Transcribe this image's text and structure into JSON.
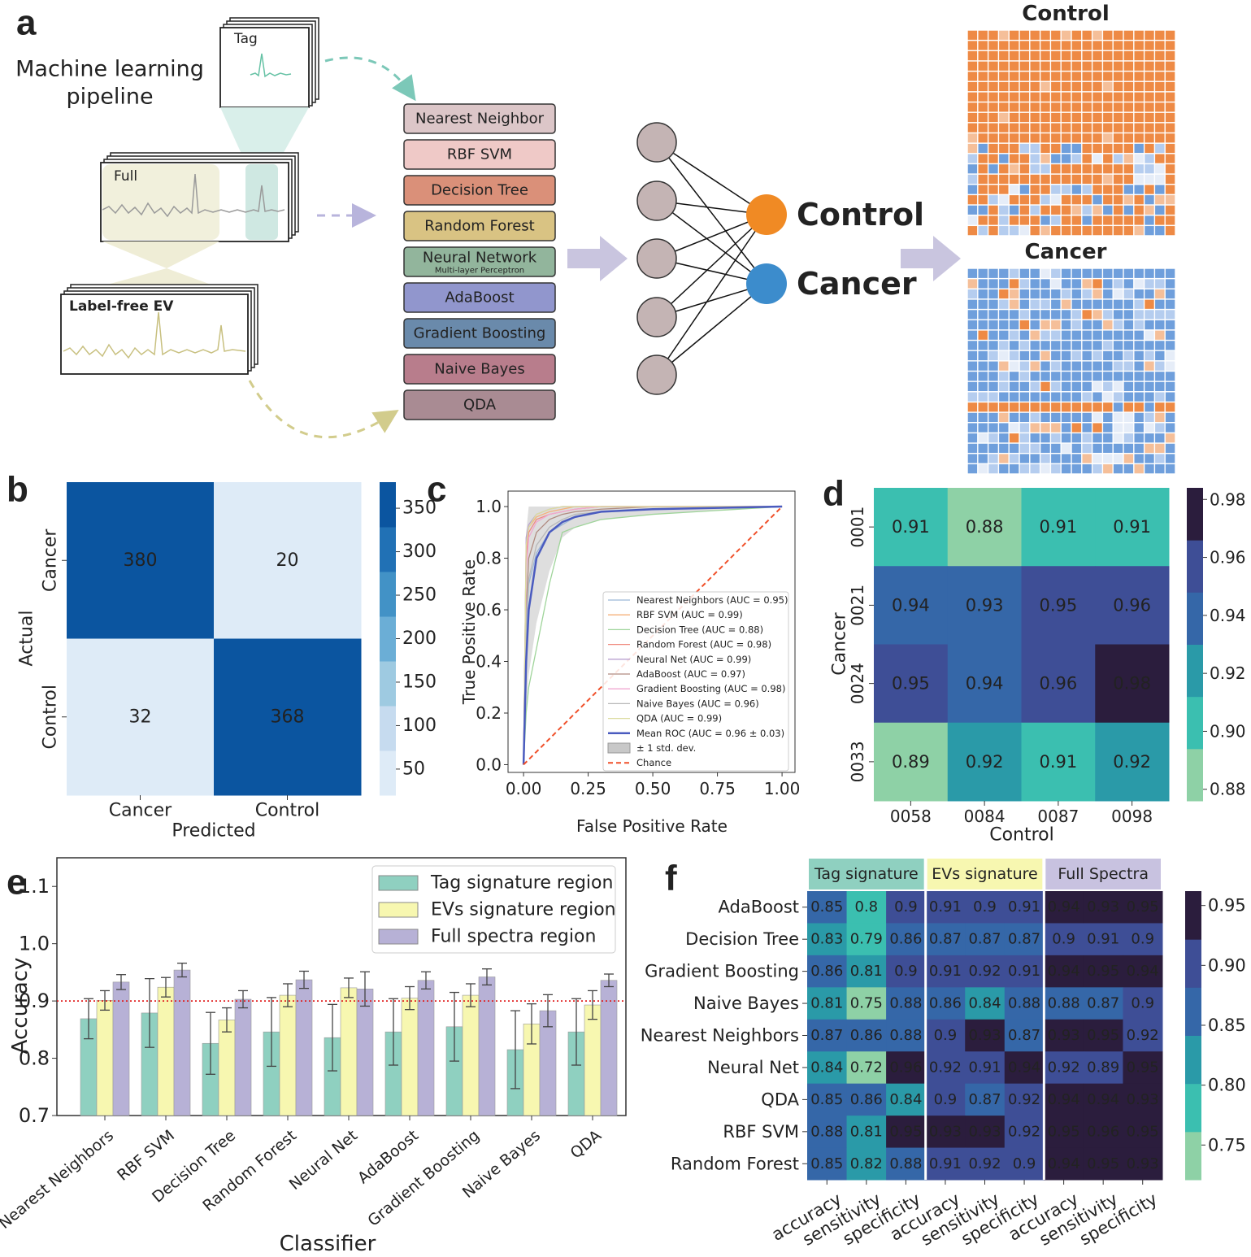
{
  "pipeline": {
    "panel": "a",
    "title_lines": [
      "Machine learning",
      "pipeline"
    ],
    "inputs": {
      "tag": "Tag",
      "full": "Full",
      "ev": "Label-free EV"
    },
    "classifiers": [
      "Nearest Neighbor",
      "RBF SVM",
      "Decision Tree",
      "Random Forest",
      "Neural Network",
      "AdaBoost",
      "Gradient Boosting",
      "Naive Bayes",
      "QDA"
    ],
    "classifier_colors": [
      "#dcc6c8",
      "#efc9c7",
      "#da9079",
      "#d9c383",
      "#92b59c",
      "#9196cd",
      "#6a8aab",
      "#b87d8c",
      "#a98b93"
    ],
    "classifier_note": "Multi-layer Perceptron",
    "outputs": [
      {
        "name": "Control",
        "color": "#f08a24"
      },
      {
        "name": "Cancer",
        "color": "#3c8ccc"
      }
    ],
    "result_titles": [
      "Control",
      "Cancer"
    ]
  },
  "chart_data": [
    {
      "type": "heatmap",
      "panel": "b",
      "categories": [
        "Cancer",
        "Control"
      ],
      "rows": [
        "Cancer",
        "Control"
      ],
      "values": [
        [
          380,
          20
        ],
        [
          32,
          368
        ]
      ],
      "xlabel": "Predicted",
      "ylabel": "Actual",
      "annot": true,
      "colorbar": {
        "lim": [
          20,
          380
        ],
        "ticks": [
          50,
          100,
          150,
          200,
          250,
          300,
          350
        ],
        "colors": [
          "#deebf7",
          "#c6dbef",
          "#9ecae1",
          "#6baed6",
          "#4292c6",
          "#2171b5",
          "#0b55a0"
        ]
      }
    },
    {
      "type": "line",
      "panel": "c",
      "xlabel": "False Positive Rate",
      "ylabel": "True Positive Rate",
      "xlim": [
        -0.06,
        1.05
      ],
      "ylim": [
        -0.03,
        1.06
      ],
      "xticks": [
        {
          "value": 0,
          "label": "0.00"
        },
        0.25,
        {
          "value": 0.5,
          "label": "0.50"
        },
        0.75,
        {
          "value": 1,
          "label": "1.00"
        }
      ],
      "yticks": [
        {
          "value": 0,
          "label": "0.0"
        },
        0.2,
        0.4,
        0.6,
        0.8,
        {
          "value": 1,
          "label": "1.0"
        }
      ],
      "x": [
        0,
        0.01,
        0.02,
        0.05,
        0.1,
        0.15,
        0.2,
        0.3,
        0.5,
        1
      ],
      "series": [
        {
          "name": "Nearest Neighbors (AUC = 0.95)",
          "color": "#9ab6d8",
          "values": [
            0,
            0.5,
            0.7,
            0.82,
            0.9,
            0.93,
            0.96,
            0.98,
            0.99,
            1
          ]
        },
        {
          "name": "RBF SVM (AUC = 0.99)",
          "color": "#f5b07a",
          "values": [
            0,
            0.85,
            0.92,
            0.96,
            0.98,
            0.99,
            1,
            1,
            1,
            1
          ]
        },
        {
          "name": "Decision Tree (AUC = 0.88)",
          "color": "#9fd49a",
          "values": [
            0,
            0.2,
            0.3,
            0.45,
            0.7,
            0.9,
            0.92,
            0.95,
            0.97,
            1
          ]
        },
        {
          "name": "Random Forest (AUC = 0.98)",
          "color": "#f08b80",
          "values": [
            0,
            0.8,
            0.9,
            0.95,
            0.97,
            0.98,
            0.99,
            1,
            1,
            1
          ]
        },
        {
          "name": "Neural Net (AUC = 0.99)",
          "color": "#b9a0d0",
          "values": [
            0,
            0.88,
            0.93,
            0.97,
            0.99,
            1,
            1,
            1,
            1,
            1
          ]
        },
        {
          "name": "AdaBoost (AUC = 0.97)",
          "color": "#b08b80",
          "values": [
            0,
            0.6,
            0.8,
            0.9,
            0.95,
            0.97,
            0.98,
            0.99,
            1,
            1
          ]
        },
        {
          "name": "Gradient Boosting (AUC = 0.98)",
          "color": "#f0a8d0",
          "values": [
            0,
            0.75,
            0.88,
            0.94,
            0.97,
            0.98,
            0.99,
            1,
            1,
            1
          ]
        },
        {
          "name": "Naive Bayes (AUC = 0.96)",
          "color": "#b8b8b8",
          "values": [
            0,
            0.55,
            0.72,
            0.85,
            0.92,
            0.95,
            0.97,
            0.98,
            0.99,
            1
          ]
        },
        {
          "name": "QDA (AUC = 0.99)",
          "color": "#dcdca0",
          "values": [
            0,
            0.85,
            0.92,
            0.97,
            0.99,
            1,
            1,
            1,
            1,
            1
          ]
        }
      ],
      "mean": {
        "name": "Mean ROC (AUC = 0.96 ± 0.03)",
        "color": "#4a5bbf",
        "values": [
          0,
          0.4,
          0.6,
          0.8,
          0.9,
          0.94,
          0.96,
          0.98,
          0.99,
          1
        ]
      },
      "band": {
        "name": "± 1 std. dev.",
        "color": "#c8c8c8",
        "lower": [
          0,
          0.2,
          0.35,
          0.55,
          0.75,
          0.88,
          0.92,
          0.95,
          0.97,
          1
        ],
        "upper": [
          0,
          0.9,
          1,
          1,
          1,
          1,
          1,
          1,
          1,
          1
        ]
      },
      "chance": {
        "name": "Chance",
        "color": "#f0502a",
        "x": [
          0,
          1
        ],
        "values": [
          0,
          1
        ]
      }
    },
    {
      "type": "heatmap",
      "panel": "d",
      "categories": [
        "0058",
        "0084",
        "0087",
        "0098"
      ],
      "rows": [
        "0001",
        "0021",
        "0024",
        "0033"
      ],
      "values": [
        [
          0.91,
          0.88,
          0.91,
          0.91
        ],
        [
          0.94,
          0.93,
          0.95,
          0.96
        ],
        [
          0.95,
          0.94,
          0.96,
          0.98
        ],
        [
          0.89,
          0.92,
          0.91,
          0.92
        ]
      ],
      "xlabel": "Control",
      "ylabel": "Cancer",
      "annot": true,
      "colorbar": {
        "lim": [
          0.876,
          0.984
        ],
        "ticks": [
          0.88,
          {
            "value": 0.9,
            "label": "0.90"
          },
          0.92,
          0.94,
          0.96,
          0.98
        ],
        "colors": [
          "#8ed1a6",
          "#3bbfb0",
          "#2a9aa8",
          "#3567a8",
          "#3e4e96",
          "#2b1d3d"
        ]
      }
    },
    {
      "type": "bar",
      "panel": "e",
      "xlabel": "Classifier",
      "ylabel": "Accuracy",
      "ylim": [
        0.7,
        1.15
      ],
      "yticks": [
        0.7,
        0.8,
        0.9,
        {
          "value": 1,
          "label": "1.0"
        },
        1.1
      ],
      "hline": 0.9,
      "hline_color": "#e02020",
      "categories": [
        "Nearest Neighbors",
        "RBF SVM",
        "Decision Tree",
        "Random Forest",
        "Neural Net",
        "AdaBoost",
        "Gradient Boosting",
        "Naive Bayes",
        "QDA"
      ],
      "series": [
        {
          "name": "Tag signature region",
          "color": "#8fd0c0",
          "values": [
            0.869,
            0.879,
            0.826,
            0.846,
            0.836,
            0.846,
            0.855,
            0.815,
            0.846
          ],
          "errors": [
            0.035,
            0.06,
            0.054,
            0.06,
            0.058,
            0.058,
            0.06,
            0.068,
            0.058
          ]
        },
        {
          "name": "EVs signature region",
          "color": "#f7f7b0",
          "values": [
            0.901,
            0.924,
            0.867,
            0.91,
            0.923,
            0.905,
            0.91,
            0.86,
            0.893
          ],
          "errors": [
            0.017,
            0.017,
            0.021,
            0.02,
            0.017,
            0.02,
            0.02,
            0.035,
            0.025
          ]
        },
        {
          "name": "Full spectra region",
          "color": "#b7b1d6",
          "values": [
            0.933,
            0.954,
            0.903,
            0.937,
            0.921,
            0.936,
            0.942,
            0.883,
            0.936
          ],
          "errors": [
            0.013,
            0.012,
            0.015,
            0.015,
            0.03,
            0.015,
            0.014,
            0.028,
            0.011
          ]
        }
      ]
    },
    {
      "type": "heatmap",
      "panel": "f",
      "categories": [
        "accuracy",
        "sensitivity",
        "specificity",
        "accuracy",
        "sensitivity",
        "specificity",
        "accuracy",
        "sensitivity",
        "specificity"
      ],
      "rows": [
        "AdaBoost",
        "Decision Tree",
        "Gradient Boosting",
        "Naive Bayes",
        "Nearest Neighbors",
        "Neural Net",
        "QDA",
        "RBF SVM",
        "Random Forest"
      ],
      "groups": [
        {
          "name": "Tag signature",
          "color": "#8fd0c0"
        },
        {
          "name": "EVs signature",
          "color": "#f7f7b0"
        },
        {
          "name": "Full Spectra",
          "color": "#c8c2e0"
        }
      ],
      "values": [
        [
          0.85,
          0.8,
          0.9,
          0.91,
          0.9,
          0.91,
          0.94,
          0.93,
          0.95
        ],
        [
          0.83,
          0.79,
          0.86,
          0.87,
          0.87,
          0.87,
          0.9,
          0.91,
          0.9
        ],
        [
          0.86,
          0.81,
          0.9,
          0.91,
          0.92,
          0.91,
          0.94,
          0.95,
          0.94
        ],
        [
          0.81,
          0.75,
          0.88,
          0.86,
          0.84,
          0.88,
          0.88,
          0.87,
          0.9
        ],
        [
          0.87,
          0.86,
          0.88,
          0.9,
          0.93,
          0.87,
          0.93,
          0.95,
          0.92
        ],
        [
          0.84,
          0.72,
          0.96,
          0.92,
          0.91,
          0.94,
          0.92,
          0.89,
          0.95
        ],
        [
          0.85,
          0.86,
          0.84,
          0.9,
          0.87,
          0.92,
          0.94,
          0.94,
          0.93
        ],
        [
          0.88,
          0.81,
          0.95,
          0.93,
          0.93,
          0.92,
          0.95,
          0.96,
          0.95
        ],
        [
          0.85,
          0.82,
          0.88,
          0.91,
          0.92,
          0.9,
          0.94,
          0.95,
          0.93
        ]
      ],
      "annot": true,
      "colorbar": {
        "lim": [
          0.721,
          0.962
        ],
        "ticks": [
          0.75,
          {
            "value": 0.8,
            "label": "0.80"
          },
          0.85,
          {
            "value": 0.9,
            "label": "0.90"
          },
          0.95
        ],
        "colors": [
          "#8ed1a6",
          "#3bbfb0",
          "#2a9aa8",
          "#3567a8",
          "#3e4e96",
          "#2b1d3d"
        ]
      }
    }
  ]
}
